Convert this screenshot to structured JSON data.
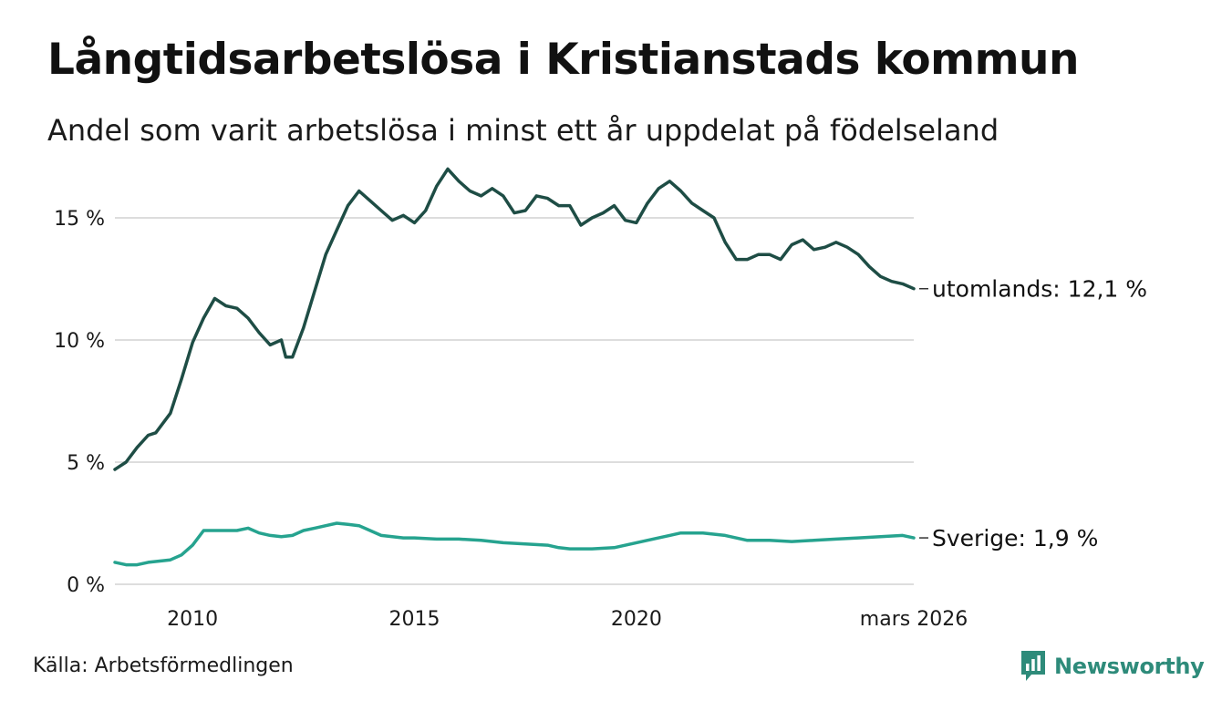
{
  "header": {
    "title": "Långtidsarbetslösa i Kristianstads kommun",
    "subtitle": "Andel som varit arbetslösa i minst ett år uppdelat på födelseland"
  },
  "footer": {
    "source": "Källa: Arbetsförmedlingen",
    "brand": "Newsworthy"
  },
  "colors": {
    "utomlands": "#1e4d45",
    "sverige": "#26a38f",
    "grid": "#dddddd",
    "brand": "#2e8b7a"
  },
  "chart_data": {
    "type": "line",
    "title": "Långtidsarbetslösa i Kristianstads kommun",
    "subtitle": "Andel som varit arbetslösa i minst ett år uppdelat på födelseland",
    "xlabel": "",
    "ylabel": "",
    "xlim": [
      2008.25,
      2026.25
    ],
    "ylim": [
      0,
      17.5
    ],
    "grid": true,
    "y_ticks": [
      {
        "value": 0,
        "label": "0 %"
      },
      {
        "value": 5,
        "label": "5 %"
      },
      {
        "value": 10,
        "label": "10 %"
      },
      {
        "value": 15,
        "label": "15 %"
      }
    ],
    "x_ticks": [
      {
        "value": 2010,
        "label": "2010"
      },
      {
        "value": 2015,
        "label": "2015"
      },
      {
        "value": 2020,
        "label": "2020"
      },
      {
        "value": 2026.25,
        "label": "mars 2026"
      }
    ],
    "series": [
      {
        "name": "utomlands",
        "end_label": "utomlands: 12,1 %",
        "x": [
          2008.25,
          2008.5,
          2008.75,
          2009.0,
          2009.17,
          2009.5,
          2009.75,
          2010.0,
          2010.25,
          2010.5,
          2010.75,
          2011.0,
          2011.25,
          2011.5,
          2011.75,
          2012.0,
          2012.1,
          2012.25,
          2012.5,
          2012.75,
          2013.0,
          2013.25,
          2013.5,
          2013.75,
          2014.0,
          2014.25,
          2014.5,
          2014.75,
          2015.0,
          2015.25,
          2015.5,
          2015.75,
          2016.0,
          2016.25,
          2016.5,
          2016.75,
          2017.0,
          2017.25,
          2017.5,
          2017.75,
          2018.0,
          2018.25,
          2018.5,
          2018.75,
          2019.0,
          2019.25,
          2019.5,
          2019.75,
          2020.0,
          2020.25,
          2020.5,
          2020.75,
          2021.0,
          2021.25,
          2021.5,
          2021.75,
          2022.0,
          2022.25,
          2022.5,
          2022.75,
          2023.0,
          2023.25,
          2023.5,
          2023.75,
          2024.0,
          2024.25,
          2024.5,
          2024.75,
          2025.0,
          2025.25,
          2025.5,
          2025.75,
          2026.0,
          2026.25
        ],
        "values": [
          4.7,
          5.0,
          5.6,
          6.1,
          6.2,
          7.0,
          8.4,
          9.9,
          10.9,
          11.7,
          11.4,
          11.3,
          10.9,
          10.3,
          9.8,
          10.0,
          9.3,
          9.3,
          10.5,
          12.0,
          13.5,
          14.5,
          15.5,
          16.1,
          15.7,
          15.3,
          14.9,
          15.1,
          14.8,
          15.3,
          16.3,
          17.0,
          16.5,
          16.1,
          15.9,
          16.2,
          15.9,
          15.2,
          15.3,
          15.9,
          15.8,
          15.5,
          15.5,
          14.7,
          15.0,
          15.2,
          15.5,
          14.9,
          14.8,
          15.6,
          16.2,
          16.5,
          16.1,
          15.6,
          15.3,
          15.0,
          14.0,
          13.3,
          13.3,
          13.5,
          13.5,
          13.3,
          13.9,
          14.1,
          13.7,
          13.8,
          14.0,
          13.8,
          13.5,
          13.0,
          12.6,
          12.4,
          12.3,
          12.1
        ],
        "last_value": 12.1
      },
      {
        "name": "Sverige",
        "end_label": "Sverige:  1,9 %",
        "x": [
          2008.25,
          2008.5,
          2008.75,
          2009.0,
          2009.5,
          2009.75,
          2010.0,
          2010.25,
          2010.5,
          2010.75,
          2011.0,
          2011.25,
          2011.5,
          2011.75,
          2012.0,
          2012.25,
          2012.5,
          2012.75,
          2013.0,
          2013.25,
          2013.5,
          2013.75,
          2014.0,
          2014.25,
          2014.5,
          2014.75,
          2015.0,
          2015.5,
          2016.0,
          2016.5,
          2017.0,
          2017.5,
          2018.0,
          2018.25,
          2018.5,
          2019.0,
          2019.5,
          2020.0,
          2020.5,
          2020.75,
          2021.0,
          2021.5,
          2022.0,
          2022.5,
          2023.0,
          2023.5,
          2024.0,
          2024.5,
          2025.0,
          2025.5,
          2026.0,
          2026.25
        ],
        "values": [
          0.9,
          0.8,
          0.8,
          0.9,
          1.0,
          1.2,
          1.6,
          2.2,
          2.2,
          2.2,
          2.2,
          2.3,
          2.1,
          2.0,
          1.95,
          2.0,
          2.2,
          2.3,
          2.4,
          2.5,
          2.45,
          2.4,
          2.2,
          2.0,
          1.95,
          1.9,
          1.9,
          1.85,
          1.85,
          1.8,
          1.7,
          1.65,
          1.6,
          1.5,
          1.45,
          1.45,
          1.5,
          1.7,
          1.9,
          2.0,
          2.1,
          2.1,
          2.0,
          1.8,
          1.8,
          1.75,
          1.8,
          1.85,
          1.9,
          1.95,
          2.0,
          1.9
        ],
        "last_value": 1.9
      }
    ]
  }
}
